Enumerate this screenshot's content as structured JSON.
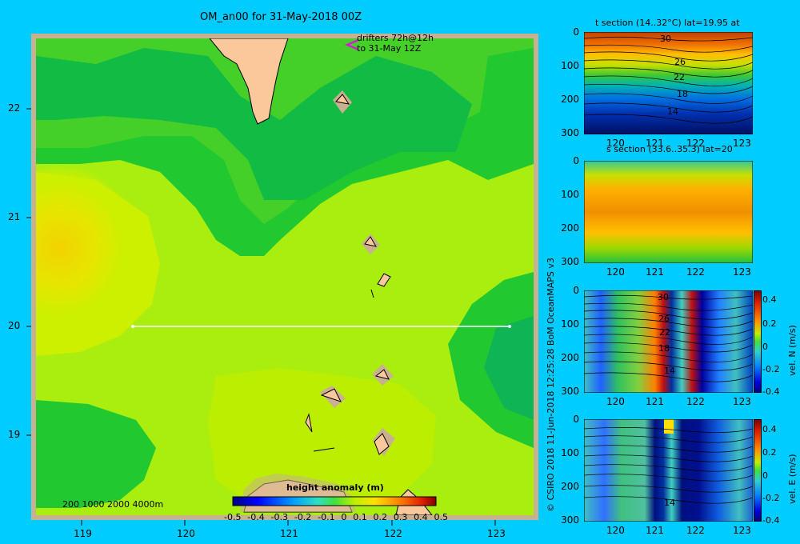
{
  "map": {
    "title": "OM_an00 for 31-May-2018 00Z",
    "drifters_label_1": "drifters 72h@12h",
    "drifters_label_2": "to 31-May 12Z",
    "depth_legend": "200  1000  2000  4000m",
    "x_ticks": [
      "119",
      "120",
      "121",
      "122",
      "123"
    ],
    "y_ticks": [
      "22",
      "21",
      "20",
      "19"
    ],
    "colorbar_title": "height anomaly  (m)",
    "colorbar_ticks": [
      "-0.5",
      "-0.4",
      "-0.3",
      "-0.2",
      "-0.1",
      "0",
      "0.1",
      "0.2",
      "0.3",
      "0.4",
      "0.5"
    ]
  },
  "credit": "© CSIRO 2018  11-Jun-2018 12:25:28 BoM OceanMAPS v3",
  "panels": [
    {
      "title": "t section (14..32°C) lat=19.95 at",
      "x_ticks": [
        "120",
        "121",
        "122",
        "123"
      ],
      "y_ticks": [
        "0",
        "100",
        "200",
        "300"
      ],
      "contour_labels": [
        "30",
        "26",
        "22",
        "18",
        "14"
      ]
    },
    {
      "title": "s section (33.6..35.3) lat=20",
      "x_ticks": [
        "120",
        "121",
        "122",
        "123"
      ],
      "y_ticks": [
        "0",
        "100",
        "200",
        "300"
      ]
    },
    {
      "x_ticks": [
        "120",
        "121",
        "122",
        "123"
      ],
      "y_ticks": [
        "0",
        "100",
        "200",
        "300"
      ],
      "contour_labels": [
        "30",
        "26",
        "22",
        "18",
        "14"
      ],
      "colorbar_label": "vel. N (m/s)",
      "colorbar_ticks": [
        "0.4",
        "0.2",
        "0",
        "-0.2",
        "-0.4"
      ]
    },
    {
      "x_ticks": [
        "120",
        "121",
        "122",
        "123"
      ],
      "y_ticks": [
        "0",
        "100",
        "200",
        "300"
      ],
      "contour_labels": [
        "14"
      ],
      "colorbar_label": "vel. E (m/s)",
      "colorbar_ticks": [
        "0.4",
        "0.2",
        "0",
        "-0.2",
        "-0.4"
      ]
    }
  ],
  "chart_data": [
    {
      "type": "heatmap",
      "title": "OM_an00 for 31-May-2018 00Z",
      "xlim": [
        118.5,
        123.5
      ],
      "ylim": [
        18.3,
        22.7
      ],
      "x_ticks": [
        119,
        120,
        121,
        122,
        123
      ],
      "y_ticks": [
        19,
        20,
        21,
        22
      ],
      "colorbar": {
        "label": "height anomaly  (m)",
        "range": [
          -0.5,
          0.5
        ]
      },
      "section_line": {
        "lat": 20,
        "lon_start": 119.5,
        "lon_end": 123.2
      }
    },
    {
      "type": "heatmap",
      "title": "t section (14..32°C) lat=19.95 at",
      "xlim": [
        119.5,
        123.2
      ],
      "ylim": [
        300,
        0
      ],
      "contour_labels": [
        30,
        26,
        22,
        18,
        14
      ]
    },
    {
      "type": "heatmap",
      "title": "s section (33.6..35.3) lat=20",
      "xlim": [
        119.5,
        123.2
      ],
      "ylim": [
        300,
        0
      ]
    },
    {
      "type": "heatmap",
      "colorbar": {
        "label": "vel. N (m/s)",
        "range": [
          -0.4,
          0.4
        ]
      },
      "xlim": [
        119.5,
        123.2
      ],
      "ylim": [
        300,
        0
      ]
    },
    {
      "type": "heatmap",
      "colorbar": {
        "label": "vel. E (m/s)",
        "range": [
          -0.4,
          0.4
        ]
      },
      "xlim": [
        119.5,
        123.2
      ],
      "ylim": [
        300,
        0
      ]
    }
  ]
}
